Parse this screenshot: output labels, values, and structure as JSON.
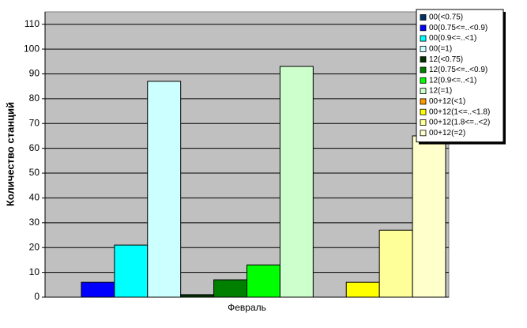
{
  "chart_data": {
    "type": "bar",
    "y_label": "Количество станций",
    "categories": [
      "Февраль"
    ],
    "series": [
      {
        "name": "00(<0.75)",
        "color": "#003366",
        "values": [
          0
        ]
      },
      {
        "name": "00(0.75<=..<0.9)",
        "color": "#0000ff",
        "values": [
          6
        ]
      },
      {
        "name": "00(0.9<=..<1)",
        "color": "#00ffff",
        "values": [
          21
        ]
      },
      {
        "name": "00(=1)",
        "color": "#ccffff",
        "values": [
          87
        ]
      },
      {
        "name": "12(<0.75)",
        "color": "#003300",
        "values": [
          1
        ]
      },
      {
        "name": "12(0.75<=..<0.9)",
        "color": "#008000",
        "values": [
          7
        ]
      },
      {
        "name": "12(0.9<=..<1)",
        "color": "#00ff00",
        "values": [
          13
        ]
      },
      {
        "name": "12(=1)",
        "color": "#ccffcc",
        "values": [
          93
        ]
      },
      {
        "name": "00+12(<1)",
        "color": "#ff9900",
        "values": [
          0
        ]
      },
      {
        "name": "00+12(1<=..<1.8)",
        "color": "#ffff00",
        "values": [
          6
        ]
      },
      {
        "name": "00+12(1.8<=..<2)",
        "color": "#ffff99",
        "values": [
          27
        ]
      },
      {
        "name": "00+12(=2)",
        "color": "#ffffcc",
        "values": [
          65
        ]
      }
    ],
    "ylim": [
      0,
      115
    ],
    "yticks": [
      0,
      10,
      20,
      30,
      40,
      50,
      60,
      70,
      80,
      90,
      100,
      110
    ],
    "plot_color": "#c0c0c0",
    "legend": "top-right"
  }
}
